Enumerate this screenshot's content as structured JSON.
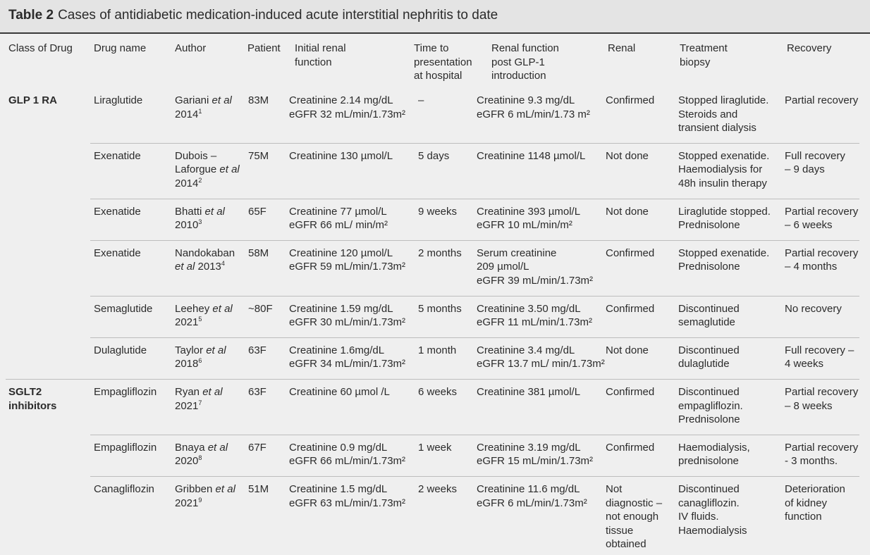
{
  "title": {
    "label": "Table 2",
    "text": "Cases of antidiabetic medication-induced acute interstitial nephritis to date"
  },
  "header": [
    [
      "Class of Drug"
    ],
    [
      "Drug name"
    ],
    [
      "Author"
    ],
    [
      "Patient"
    ],
    [
      "Initial renal",
      "function"
    ],
    [
      "Time to",
      "presentation",
      "at hospital"
    ],
    [
      "Renal function",
      "post GLP-1",
      "introduction"
    ],
    [
      "Renal"
    ],
    [
      "Treatment",
      "biopsy"
    ],
    [
      "Recovery"
    ]
  ],
  "groups": [
    {
      "class": [
        "GLP 1 RA"
      ],
      "rows": [
        {
          "drug": [
            "Liraglutide"
          ],
          "author": {
            "name": "Gariani",
            "et_al": "et al",
            "year": "2014",
            "ref": "1"
          },
          "patient": [
            "83M"
          ],
          "initial": [
            "Creatinine 2.14 mg/dL",
            "eGFR 32 mL/min/1.73m²"
          ],
          "time": [
            "–"
          ],
          "post": [
            "Creatinine 9.3 mg/dL",
            "eGFR 6 mL/min/1.73 m²"
          ],
          "biopsy": [
            "Confirmed"
          ],
          "treatment": [
            "Stopped liraglutide.",
            "Steroids and",
            "transient dialysis"
          ],
          "recovery": [
            "Partial recovery"
          ]
        },
        {
          "drug": [
            "Exenatide"
          ],
          "author": {
            "name": "Dubois – Laforgue",
            "et_al": "et al",
            "year": "2014",
            "ref": "2"
          },
          "patient": [
            "75M"
          ],
          "initial": [
            "Creatinine 130 µmol/L"
          ],
          "time": [
            "5 days"
          ],
          "post": [
            "Creatinine 1148 µmol/L"
          ],
          "biopsy": [
            "Not done"
          ],
          "treatment": [
            "Stopped exenatide.",
            "Haemodialysis for",
            "48h insulin therapy"
          ],
          "recovery": [
            "Full recovery",
            "– 9 days"
          ]
        },
        {
          "drug": [
            "Exenatide"
          ],
          "author": {
            "name": "Bhatti",
            "et_al": "et al",
            "year": "2010",
            "ref": "3"
          },
          "patient": [
            "65F"
          ],
          "initial": [
            "Creatinine 77 µmol/L",
            "eGFR 66 mL/ min/m²"
          ],
          "time": [
            "9 weeks"
          ],
          "post": [
            "Creatinine 393 µmol/L",
            "eGFR 10 mL/min/m²"
          ],
          "biopsy": [
            "Not done"
          ],
          "treatment": [
            "Liraglutide stopped.",
            "Prednisolone"
          ],
          "recovery": [
            "Partial recovery",
            "– 6 weeks"
          ]
        },
        {
          "drug": [
            "Exenatide"
          ],
          "author": {
            "name": "Nandokaban",
            "et_al": "et al",
            "year": "2013",
            "ref": "4"
          },
          "patient": [
            "58M"
          ],
          "initial": [
            "Creatinine 120 µmol/L",
            "eGFR 59 mL/min/1.73m²"
          ],
          "time": [
            "2 months"
          ],
          "post": [
            "Serum creatinine",
            "209 µmol/L",
            "eGFR 39 mL/min/1.73m²"
          ],
          "biopsy": [
            "Confirmed"
          ],
          "treatment": [
            "Stopped exenatide.",
            "Prednisolone"
          ],
          "recovery": [
            "Partial recovery",
            "– 4 months"
          ]
        },
        {
          "drug": [
            "Semaglutide"
          ],
          "author": {
            "name": "Leehey",
            "et_al": "et al",
            "year": "2021",
            "ref": "5"
          },
          "patient": [
            "~80F"
          ],
          "initial": [
            "Creatinine 1.59 mg/dL",
            "eGFR 30 mL/min/1.73m²"
          ],
          "time": [
            "5 months"
          ],
          "post": [
            "Creatinine 3.50 mg/dL",
            "eGFR 11 mL/min/1.73m²"
          ],
          "biopsy": [
            "Confirmed"
          ],
          "treatment": [
            "Discontinued",
            "semaglutide"
          ],
          "recovery": [
            "No recovery"
          ]
        },
        {
          "drug": [
            "Dulaglutide"
          ],
          "author": {
            "name": "Taylor",
            "et_al": "et al",
            "year": "2018",
            "ref": "6"
          },
          "patient": [
            "63F"
          ],
          "initial": [
            "Creatinine 1.6mg/dL",
            "eGFR 34 mL/min/1.73m²"
          ],
          "time": [
            "1 month"
          ],
          "post": [
            "Creatinine 3.4 mg/dL",
            "eGFR 13.7 mL/ min/1.73m²"
          ],
          "biopsy": [
            "Not done"
          ],
          "treatment": [
            "Discontinued",
            "dulaglutide"
          ],
          "recovery": [
            "Full recovery –",
            "4 weeks"
          ]
        }
      ]
    },
    {
      "class": [
        "SGLT2",
        "inhibitors"
      ],
      "rows": [
        {
          "drug": [
            "Empagliflozin"
          ],
          "author": {
            "name": "Ryan",
            "et_al": "et al",
            "year": "2021",
            "ref": "7"
          },
          "patient": [
            "63F"
          ],
          "initial": [
            "Creatinine 60 µmol /L"
          ],
          "time": [
            "6 weeks"
          ],
          "post": [
            "Creatinine 381 µmol/L"
          ],
          "biopsy": [
            "Confirmed"
          ],
          "treatment": [
            "Discontinued",
            "empagliflozin.",
            "Prednisolone"
          ],
          "recovery": [
            "Partial recovery",
            "– 8 weeks"
          ]
        },
        {
          "drug": [
            "Empagliflozin"
          ],
          "author": {
            "name": "Bnaya",
            "et_al": "et al",
            "year": "2020",
            "ref": "8"
          },
          "patient": [
            "67F"
          ],
          "initial": [
            "Creatinine 0.9 mg/dL",
            "eGFR 66 mL/min/1.73m²"
          ],
          "time": [
            "1 week"
          ],
          "post": [
            "Creatinine 3.19 mg/dL",
            "eGFR 15 mL/min/1.73m²"
          ],
          "biopsy": [
            "Confirmed"
          ],
          "treatment": [
            "Haemodialysis,",
            "prednisolone"
          ],
          "recovery": [
            "Partial recovery",
            "- 3 months."
          ]
        },
        {
          "drug": [
            "Canagliflozin"
          ],
          "author": {
            "name": "Gribben",
            "et_al": "et al",
            "year": "2021",
            "ref": "9"
          },
          "patient": [
            "51M"
          ],
          "initial": [
            "Creatinine 1.5 mg/dL",
            "eGFR 63 mL/min/1.73m²"
          ],
          "time": [
            "2 weeks"
          ],
          "post": [
            "Creatinine 11.6 mg/dL",
            "eGFR 6 mL/min/1.73m²"
          ],
          "biopsy": [
            "Not",
            "diagnostic –",
            "not enough",
            "tissue",
            "obtained"
          ],
          "treatment": [
            "Discontinued",
            "canagliflozin.",
            "IV fluids.",
            "Haemodialysis"
          ],
          "recovery": [
            "Deterioration",
            "of kidney",
            "function"
          ]
        }
      ]
    }
  ]
}
